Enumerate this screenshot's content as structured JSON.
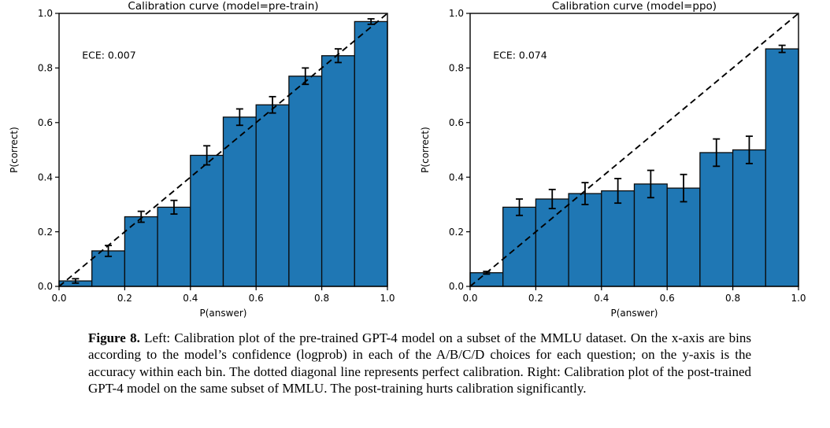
{
  "figure": {
    "caption_label": "Figure 8.",
    "caption_text": " Left: Calibration plot of the pre-trained GPT-4 model on a subset of the MMLU dataset. On the x-axis are bins according to the model’s confidence (logprob) in each of the A/B/C/D choices for each question; on the y-axis is the accuracy within each bin. The dotted diagonal line represents perfect calibration. Right: Calibration plot of the post-trained GPT-4 model on the same subset of MMLU. The post-training hurts calibration significantly."
  },
  "chart_data": [
    {
      "type": "bar",
      "title": "Calibration curve (model=pre-train)",
      "annotation": "ECE: 0.007",
      "xlabel": "P(answer)",
      "ylabel": "P(correct)",
      "xlim": [
        0.0,
        1.0
      ],
      "ylim": [
        0.0,
        1.0
      ],
      "xticks": [
        "0.0",
        "0.2",
        "0.4",
        "0.6",
        "0.8",
        "1.0"
      ],
      "yticks": [
        "0.0",
        "0.2",
        "0.4",
        "0.6",
        "0.8",
        "1.0"
      ],
      "bin_edges": [
        0.0,
        0.1,
        0.2,
        0.3,
        0.4,
        0.5,
        0.6,
        0.7,
        0.8,
        0.9,
        1.0
      ],
      "values": [
        0.02,
        0.13,
        0.255,
        0.29,
        0.48,
        0.62,
        0.665,
        0.77,
        0.845,
        0.97
      ],
      "errors": [
        0.008,
        0.02,
        0.02,
        0.025,
        0.035,
        0.03,
        0.03,
        0.03,
        0.025,
        0.01
      ],
      "diagonal": "perfect-calibration",
      "grid": false,
      "legend": "none",
      "bar_color": "#1f77b4",
      "bar_edge_color": "#0b0b0b",
      "line_color": "#000000"
    },
    {
      "type": "bar",
      "title": "Calibration curve (model=ppo)",
      "annotation": "ECE: 0.074",
      "xlabel": "P(answer)",
      "ylabel": "P(correct)",
      "xlim": [
        0.0,
        1.0
      ],
      "ylim": [
        0.0,
        1.0
      ],
      "xticks": [
        "0.0",
        "0.2",
        "0.4",
        "0.6",
        "0.8",
        "1.0"
      ],
      "yticks": [
        "0.0",
        "0.2",
        "0.4",
        "0.6",
        "0.8",
        "1.0"
      ],
      "bin_edges": [
        0.0,
        0.1,
        0.2,
        0.3,
        0.4,
        0.5,
        0.6,
        0.7,
        0.8,
        0.9,
        1.0
      ],
      "values": [
        0.05,
        0.29,
        0.32,
        0.34,
        0.35,
        0.375,
        0.36,
        0.49,
        0.5,
        0.87
      ],
      "errors": [
        0.005,
        0.03,
        0.035,
        0.04,
        0.045,
        0.05,
        0.05,
        0.05,
        0.05,
        0.013
      ],
      "diagonal": "perfect-calibration",
      "grid": false,
      "legend": "none",
      "bar_color": "#1f77b4",
      "bar_edge_color": "#0b0b0b",
      "line_color": "#000000"
    }
  ]
}
